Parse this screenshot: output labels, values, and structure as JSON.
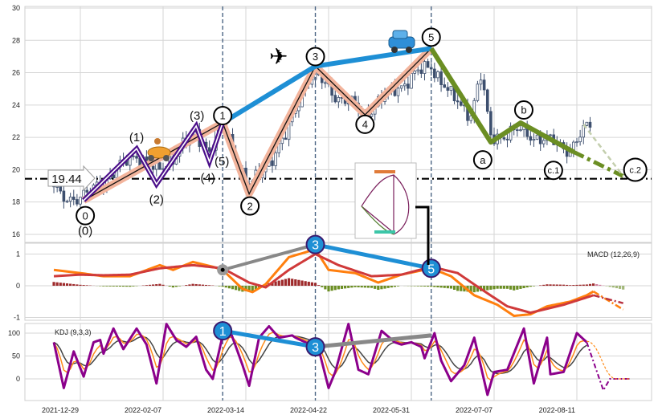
{
  "chart_data": {
    "type": "candlestick-with-indicators",
    "x_unit": "trading-day index from 2021-12-29",
    "x_ticks": [
      {
        "idx": 0,
        "label": "2021-12-29"
      },
      {
        "idx": 25,
        "label": "2022-02-07"
      },
      {
        "idx": 50,
        "label": "2022-03-14"
      },
      {
        "idx": 75,
        "label": "2022-04-22"
      },
      {
        "idx": 100,
        "label": "2022-05-31"
      },
      {
        "idx": 125,
        "label": "2022-07-07"
      },
      {
        "idx": 150,
        "label": "2022-08-11"
      }
    ],
    "price_panel": {
      "ylim": [
        15.6,
        30.2
      ],
      "yticks": [
        "16",
        "18",
        "20",
        "22",
        "24",
        "26",
        "28",
        "30"
      ],
      "price_path": [
        [
          -9,
          19.2
        ],
        [
          -6,
          18.3
        ],
        [
          1,
          18.3
        ],
        [
          17,
          21
        ],
        [
          23,
          19.8
        ],
        [
          35,
          22.3
        ],
        [
          39,
          21.2
        ],
        [
          43,
          22.8
        ],
        [
          51,
          18.8
        ],
        [
          62,
          22
        ],
        [
          68,
          25.5
        ],
        [
          71,
          25.8
        ],
        [
          78,
          24.5
        ],
        [
          86,
          23.5
        ],
        [
          95,
          25
        ],
        [
          106,
          26.5
        ],
        [
          112,
          24.5
        ],
        [
          118,
          23.5
        ],
        [
          121,
          25.8
        ],
        [
          124,
          22
        ],
        [
          133,
          22.4
        ],
        [
          145,
          21.5
        ],
        [
          148,
          21.3
        ],
        [
          154,
          22.8
        ]
      ],
      "support_level": 19.44,
      "support_label": "19.44",
      "vertical_markers": [
        43,
        71,
        106
      ],
      "main_wave": [
        {
          "label": "0",
          "idx": 1,
          "price": 18.1
        },
        {
          "label": "1",
          "idx": 43,
          "price": 22.9
        },
        {
          "label": "2",
          "idx": 51,
          "price": 18.5
        },
        {
          "label": "3",
          "idx": 71,
          "price": 26.4
        },
        {
          "label": "4",
          "idx": 86,
          "price": 23.4
        },
        {
          "label": "5",
          "idx": 106,
          "price": 27.5
        }
      ],
      "sub_wave": [
        {
          "label": "(0)",
          "idx": 1,
          "price": 18.1
        },
        {
          "label": "(1)",
          "idx": 17,
          "price": 21.3
        },
        {
          "label": "(2)",
          "idx": 23,
          "price": 19.1
        },
        {
          "label": "(3)",
          "idx": 35,
          "price": 22.7
        },
        {
          "label": "(4)",
          "idx": 39,
          "price": 20.5
        },
        {
          "label": "(5)",
          "idx": 43,
          "price": 22.9
        }
      ],
      "corrective_wave": [
        {
          "label": "5",
          "idx": 106,
          "price": 27.5
        },
        {
          "label": "a",
          "idx": 124,
          "price": 21.7
        },
        {
          "label": "b",
          "idx": 133,
          "price": 22.9
        },
        {
          "label": "c.1",
          "idx": 149,
          "price": 21.1
        },
        {
          "label": "c.2",
          "idx": 164,
          "price": 19.6
        }
      ],
      "projection_alt": [
        [
          152,
          22.8
        ],
        [
          164,
          19.6
        ]
      ],
      "icons": [
        "scooter-icon",
        "airplane-icon",
        "car-icon"
      ]
    },
    "macd_panel": {
      "title": "MACD (12,26,9)",
      "ylim": [
        -1.1,
        1.4
      ],
      "yticks": [
        "-1",
        "0",
        "1"
      ],
      "dif": [
        [
          -8,
          0.5
        ],
        [
          0,
          0.4
        ],
        [
          7,
          0.3
        ],
        [
          15,
          0.3
        ],
        [
          24,
          0.65
        ],
        [
          28,
          0.5
        ],
        [
          34,
          0.75
        ],
        [
          40,
          0.6
        ],
        [
          43,
          0.5
        ],
        [
          49,
          -0.1
        ],
        [
          52,
          -0.2
        ],
        [
          56,
          0.05
        ],
        [
          63,
          0.9
        ],
        [
          71,
          1.15
        ],
        [
          75,
          0.5
        ],
        [
          83,
          0.4
        ],
        [
          90,
          0.1
        ],
        [
          97,
          0.35
        ],
        [
          106,
          0.55
        ],
        [
          112,
          0.3
        ],
        [
          119,
          -0.3
        ],
        [
          126,
          -0.6
        ],
        [
          131,
          -0.95
        ],
        [
          136,
          -0.9
        ],
        [
          141,
          -0.65
        ],
        [
          148,
          -0.5
        ],
        [
          153,
          -0.3
        ],
        [
          155,
          -0.18
        ]
      ],
      "dif_projection": [
        [
          155,
          -0.18
        ],
        [
          164,
          -0.75
        ]
      ],
      "dea": [
        [
          -8,
          0.3
        ],
        [
          0,
          0.35
        ],
        [
          7,
          0.33
        ],
        [
          15,
          0.35
        ],
        [
          24,
          0.55
        ],
        [
          34,
          0.65
        ],
        [
          43,
          0.55
        ],
        [
          51,
          0.1
        ],
        [
          56,
          -0.05
        ],
        [
          63,
          0.5
        ],
        [
          71,
          1.0
        ],
        [
          78,
          0.65
        ],
        [
          88,
          0.3
        ],
        [
          97,
          0.35
        ],
        [
          106,
          0.6
        ],
        [
          114,
          0.4
        ],
        [
          121,
          -0.1
        ],
        [
          129,
          -0.65
        ],
        [
          136,
          -0.85
        ],
        [
          146,
          -0.6
        ],
        [
          155,
          -0.3
        ]
      ],
      "dea_projection": [
        [
          155,
          -0.3
        ],
        [
          164,
          -0.55
        ]
      ],
      "marks": [
        {
          "label": "",
          "idx": 43,
          "value": 0.5
        },
        {
          "label": "3",
          "idx": 71,
          "value": 1.3
        },
        {
          "label": "5",
          "idx": 106,
          "value": 0.55
        }
      ]
    },
    "kdj_panel": {
      "title": "KDJ (9,3,3)",
      "ylim": [
        -45,
        125
      ],
      "yticks": [
        "0",
        "50",
        "100"
      ],
      "j": [
        [
          -8,
          80
        ],
        [
          -5,
          -20
        ],
        [
          -2,
          60
        ],
        [
          1,
          5
        ],
        [
          4,
          80
        ],
        [
          6,
          85
        ],
        [
          7,
          55
        ],
        [
          10,
          110
        ],
        [
          13,
          65
        ],
        [
          17,
          110
        ],
        [
          20,
          75
        ],
        [
          23,
          -10
        ],
        [
          26,
          120
        ],
        [
          29,
          85
        ],
        [
          32,
          70
        ],
        [
          35,
          92
        ],
        [
          38,
          20
        ],
        [
          40,
          0
        ],
        [
          43,
          95
        ],
        [
          45,
          110
        ],
        [
          49,
          30
        ],
        [
          51,
          -15
        ],
        [
          54,
          90
        ],
        [
          57,
          115
        ],
        [
          60,
          90
        ],
        [
          64,
          95
        ],
        [
          65,
          90
        ],
        [
          68,
          80
        ],
        [
          72,
          65
        ],
        [
          75,
          -20
        ],
        [
          77,
          15
        ],
        [
          81,
          120
        ],
        [
          84,
          20
        ],
        [
          87,
          10
        ],
        [
          91,
          105
        ],
        [
          95,
          80
        ],
        [
          97,
          75
        ],
        [
          100,
          80
        ],
        [
          103,
          70
        ],
        [
          104,
          45
        ],
        [
          107,
          100
        ],
        [
          109,
          40
        ],
        [
          112,
          -5
        ],
        [
          116,
          30
        ],
        [
          119,
          90
        ],
        [
          123,
          -35
        ],
        [
          125,
          15
        ],
        [
          129,
          20
        ],
        [
          134,
          110
        ],
        [
          137,
          -10
        ],
        [
          141,
          90
        ],
        [
          142,
          10
        ],
        [
          146,
          15
        ],
        [
          150,
          100
        ],
        [
          153,
          80
        ]
      ],
      "j_projection": [
        [
          153,
          80
        ],
        [
          158,
          -25
        ],
        [
          160,
          0
        ],
        [
          166,
          0
        ]
      ],
      "marks": [
        {
          "label": "1",
          "idx": 43,
          "value": 105
        },
        {
          "label": "3",
          "idx": 71,
          "value": 70
        },
        {
          "label": "",
          "idx": 106,
          "value": 95
        }
      ]
    }
  }
}
